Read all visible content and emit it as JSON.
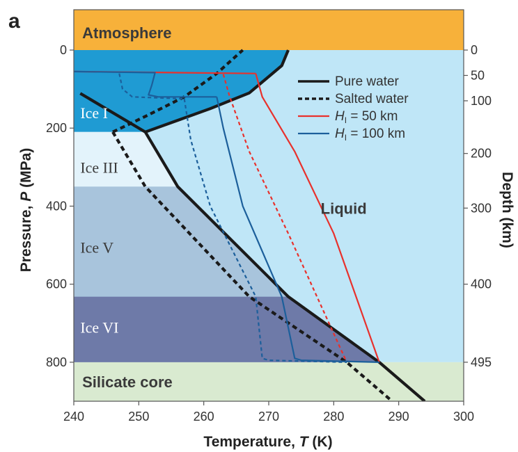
{
  "panel_label": "a",
  "colors": {
    "atmosphere": "#f7b13a",
    "liquid": "#bfe6f7",
    "ice1": "#1f9bd3",
    "ice3": "#e3f3fb",
    "ice5": "#a8c4dc",
    "ice6": "#6e7aa8",
    "core": "#d9ead0",
    "pure": "#1a1a1a",
    "salted": "#1a1a1a",
    "h50": "#e8312c",
    "h100": "#1c5f9b",
    "text_light": "#ffffff",
    "text_dark": "#3a3a3a"
  },
  "chart_data": {
    "type": "line",
    "xlabel_main": "Temperature, ",
    "xlabel_var": "T",
    "xlabel_unit": " (K)",
    "ylabel_main": "Pressure, ",
    "ylabel_var": "P",
    "ylabel_unit": " (MPa)",
    "y2label": "Depth (km)",
    "xlim": [
      240,
      300
    ],
    "ylim": [
      0,
      900
    ],
    "x_ticks": [
      240,
      250,
      260,
      270,
      280,
      290,
      300
    ],
    "y_ticks": [
      0,
      200,
      400,
      600,
      800
    ],
    "y2_ticks": [
      {
        "label": "0",
        "p": 0
      },
      {
        "label": "50",
        "p": 65
      },
      {
        "label": "100",
        "p": 130
      },
      {
        "label": "200",
        "p": 265
      },
      {
        "label": "300",
        "p": 405
      },
      {
        "label": "400",
        "p": 600
      },
      {
        "label": "495",
        "p": 800
      }
    ],
    "regions": [
      {
        "key": "atmosphere",
        "label": "Atmosphere",
        "label_x": 241.3,
        "label_p": -45,
        "font": "sans",
        "weight": "bold",
        "text": "text_dark"
      },
      {
        "key": "ice1",
        "label": "Ice I",
        "label_x": 241.0,
        "label_p": 160,
        "font": "serif",
        "weight": "normal",
        "text": "text_light"
      },
      {
        "key": "ice3",
        "label": "Ice III",
        "label_x": 241.0,
        "label_p": 300,
        "font": "serif",
        "weight": "normal",
        "text": "text_dark"
      },
      {
        "key": "ice5",
        "label": "Ice V",
        "label_x": 241.0,
        "label_p": 505,
        "font": "serif",
        "weight": "normal",
        "text": "text_dark"
      },
      {
        "key": "ice6",
        "label": "Ice VI",
        "label_x": 241.0,
        "label_p": 710,
        "font": "serif",
        "weight": "normal",
        "text": "text_light"
      },
      {
        "key": "core",
        "label": "Silicate core",
        "label_x": 241.3,
        "label_p": 850,
        "font": "sans",
        "weight": "bold",
        "text": "text_dark"
      },
      {
        "key": "liquid",
        "label": "Liquid",
        "label_x": 278.0,
        "label_p": 405,
        "font": "sans",
        "weight": "bold",
        "text": "text_dark"
      }
    ],
    "ice_boundaries_p": {
      "ice1_ice3": 210,
      "ice3_ice5": 350,
      "ice5_ice6": 632,
      "ocean_bottom": 800
    },
    "legend": [
      {
        "label": "Pure water",
        "style": "pure"
      },
      {
        "label": "Salted water",
        "style": "salted"
      },
      {
        "label": "= 50 km",
        "var": "H",
        "sub": "I",
        "style": "h50"
      },
      {
        "label": "= 100 km",
        "var": "H",
        "sub": "I",
        "style": "h100"
      }
    ],
    "series": [
      {
        "style": "pure",
        "points": [
          [
            241,
            111
          ],
          [
            251,
            210
          ],
          [
            256,
            350
          ],
          [
            273,
            632
          ],
          [
            287,
            800
          ],
          [
            294,
            900
          ]
        ]
      },
      {
        "style": "pure",
        "points": [
          [
            251,
            210
          ],
          [
            261,
            150
          ],
          [
            267,
            110
          ],
          [
            272,
            40
          ],
          [
            273,
            0
          ]
        ]
      },
      {
        "style": "salted",
        "points": [
          [
            246,
            210
          ],
          [
            251,
            350
          ],
          [
            267,
            632
          ],
          [
            282,
            800
          ],
          [
            289,
            900
          ]
        ]
      },
      {
        "style": "salted",
        "points": [
          [
            246,
            210
          ],
          [
            251,
            170
          ],
          [
            257,
            120
          ],
          [
            262,
            60
          ],
          [
            266,
            0
          ]
        ]
      },
      {
        "style": "h50",
        "points": [
          [
            240,
            55
          ],
          [
            268,
            60
          ]
        ]
      },
      {
        "style": "h50",
        "points": [
          [
            268,
            60
          ],
          [
            269,
            120
          ],
          [
            274,
            260
          ],
          [
            280,
            470
          ],
          [
            287,
            800
          ]
        ]
      },
      {
        "style": "h50",
        "style_dash": true,
        "points": [
          [
            263,
            62
          ],
          [
            264,
            120
          ],
          [
            267,
            260
          ],
          [
            273,
            470
          ],
          [
            282,
            800
          ]
        ]
      },
      {
        "style": "h100",
        "points": [
          [
            240,
            55
          ],
          [
            252.5,
            58
          ],
          [
            252,
            90
          ],
          [
            251.5,
            115
          ],
          [
            253,
            120
          ],
          [
            262,
            120
          ]
        ]
      },
      {
        "style": "h100",
        "points": [
          [
            262,
            120
          ],
          [
            263,
            200
          ],
          [
            266,
            400
          ],
          [
            272,
            632
          ],
          [
            274,
            790
          ],
          [
            275,
            795
          ],
          [
            287,
            800
          ]
        ]
      },
      {
        "style": "h100",
        "style_dash": true,
        "points": [
          [
            247,
            60
          ],
          [
            247.5,
            100
          ],
          [
            249,
            120
          ],
          [
            257,
            125
          ]
        ]
      },
      {
        "style": "h100",
        "style_dash": true,
        "points": [
          [
            257,
            125
          ],
          [
            258,
            230
          ],
          [
            261,
            400
          ],
          [
            268,
            632
          ],
          [
            269,
            790
          ],
          [
            270,
            795
          ],
          [
            282,
            800
          ]
        ]
      }
    ]
  }
}
